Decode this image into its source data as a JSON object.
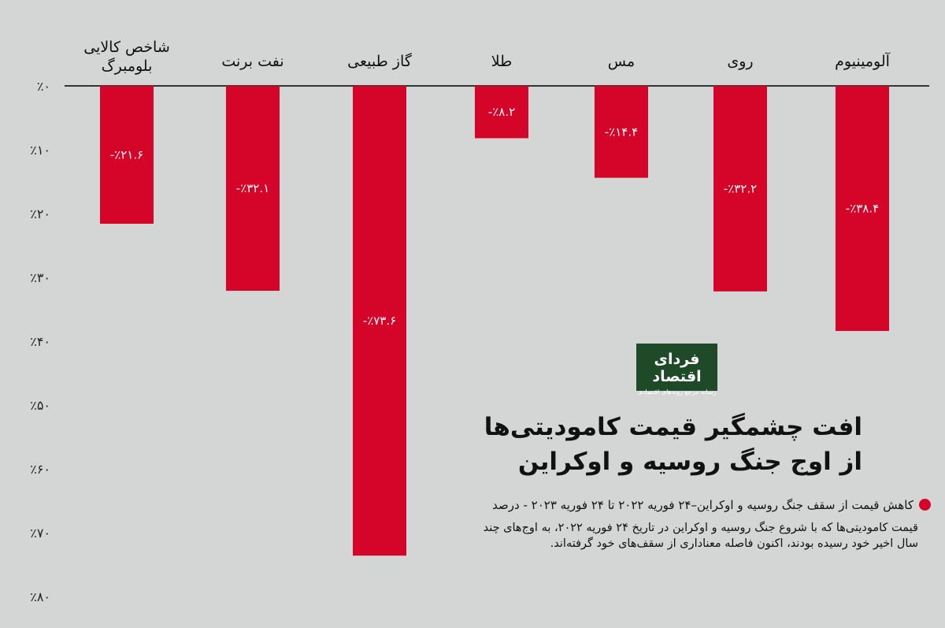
{
  "chart_data": {
    "type": "bar",
    "orientation": "vertical-negative",
    "categories": [
      "شاخص کالایی بلومبرگ",
      "نفت برنت",
      "گاز طبیعی",
      "طلا",
      "مس",
      "روی",
      "آلومینیوم"
    ],
    "values": [
      -21.6,
      -32.1,
      -73.6,
      -8.2,
      -14.4,
      -32.2,
      -38.4
    ],
    "data_labels": [
      "-٪۲۱.۶",
      "-٪۳۲.۱",
      "-٪۷۳.۶",
      "-٪۸.۲",
      "-٪۱۴.۴",
      "-٪۳۲.۲",
      "-٪۳۸.۴"
    ],
    "y_ticks": [
      0,
      -10,
      -20,
      -30,
      -40,
      -50,
      -60,
      -70,
      -80
    ],
    "y_tick_labels": [
      "٪۰",
      "٪۱۰",
      "٪۲۰",
      "٪۳۰",
      "٪۴۰",
      "٪۵۰",
      "٪۶۰",
      "٪۷۰",
      "٪۸۰"
    ],
    "ylim": [
      -80,
      0
    ],
    "bar_color": "#d5052a",
    "grid": false,
    "legend": "none"
  },
  "logo": {
    "main": "فردای اقتصاد",
    "sub": "رسانه مرجع روندهای اقتصادی"
  },
  "title": {
    "line1": "افت چشمگیر قیمت کامودیتی‌ها",
    "line2": "از اوج جنگ روسیه و اوکراین"
  },
  "note": {
    "heading": "کاهش قیمت از سقف جنگ روسیه و اوکراین–۲۴ فوریه ۲۰۲۲ تا ۲۴ فوریه ۲۰۲۳ - درصد",
    "body": "قیمت کامودیتی‌ها که با شروع جنگ روسیه و اوکراین در تاریخ ۲۴ فوریه ۲۰۲۲، به اوج‌های چند سال اخیر خود رسیده بودند، اکنون فاصله معناداری از سقف‌های خود گرفته‌اند.",
    "accent_color": "#d5052a"
  }
}
